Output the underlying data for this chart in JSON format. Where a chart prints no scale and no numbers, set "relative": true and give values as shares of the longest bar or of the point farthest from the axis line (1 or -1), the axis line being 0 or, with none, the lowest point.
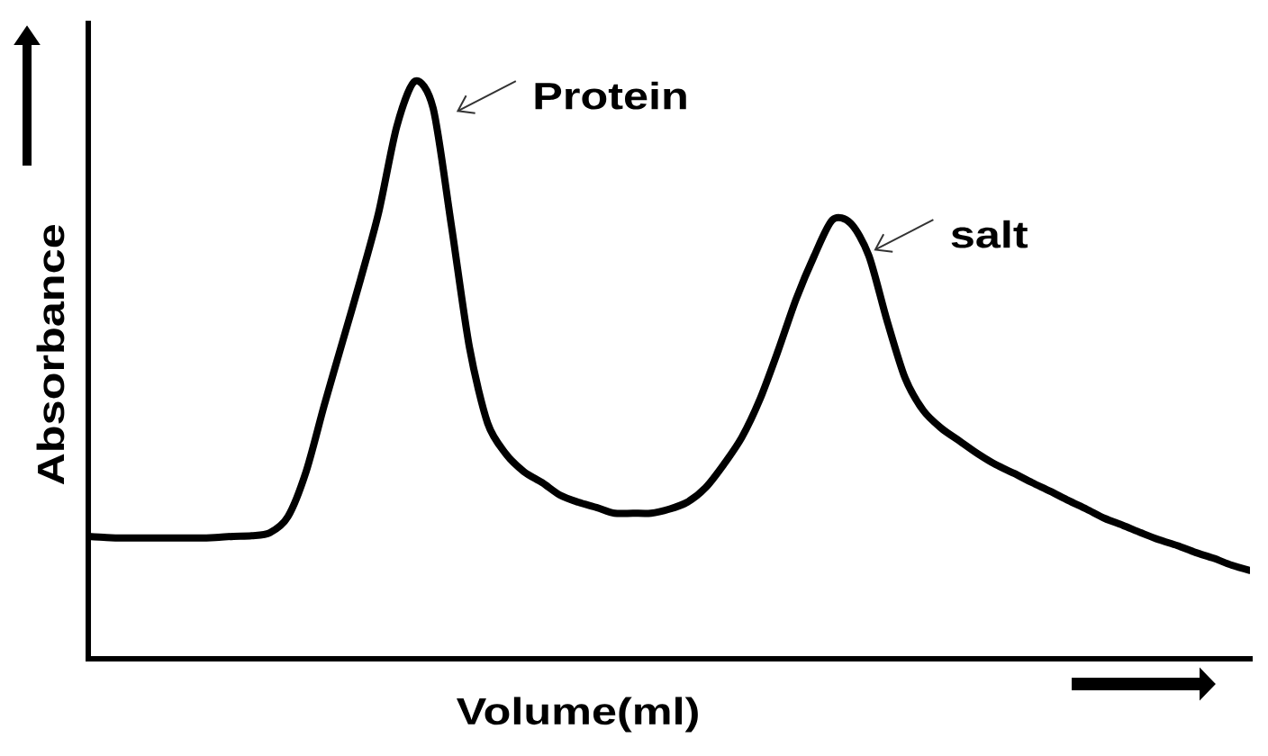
{
  "chart_data": {
    "type": "line",
    "xlabel": "Volume(ml)",
    "ylabel": "Absorbance",
    "annotations": [
      "Protein",
      "salt"
    ],
    "relative": true,
    "marker": "none",
    "categories": [
      null,
      null,
      null,
      null,
      null,
      null,
      null,
      null,
      null,
      null,
      null,
      null,
      null,
      null,
      null,
      null,
      null,
      null,
      null,
      null,
      null,
      null,
      null,
      null,
      null,
      null,
      null,
      null,
      null,
      null,
      null,
      null,
      null,
      null,
      null,
      null,
      null,
      null,
      null,
      null,
      null,
      null,
      null,
      null,
      null,
      null,
      null,
      null,
      null,
      null,
      null,
      null,
      null,
      null,
      null,
      null,
      null,
      null,
      null,
      null,
      null,
      null,
      null,
      null,
      null
    ],
    "series": [
      {
        "color": "#000000",
        "values": [
          0.212,
          0.21,
          0.209,
          0.209,
          0.209,
          0.209,
          0.209,
          0.21,
          0.212,
          0.213,
          0.218,
          0.246,
          0.324,
          0.439,
          0.548,
          0.657,
          0.773,
          0.922,
          1.0,
          0.953,
          0.751,
          0.539,
          0.408,
          0.355,
          0.324,
          0.305,
          0.283,
          0.271,
          0.262,
          0.252,
          0.252,
          0.252,
          0.259,
          0.271,
          0.296,
          0.336,
          0.383,
          0.449,
          0.533,
          0.623,
          0.698,
          0.76,
          0.754,
          0.698,
          0.586,
          0.486,
          0.43,
          0.399,
          0.377,
          0.355,
          0.336,
          0.321,
          0.305,
          0.29,
          0.274,
          0.259,
          0.243,
          0.231,
          0.218,
          0.206,
          0.196,
          0.184,
          0.174,
          0.162,
          0.153
        ]
      }
    ]
  }
}
